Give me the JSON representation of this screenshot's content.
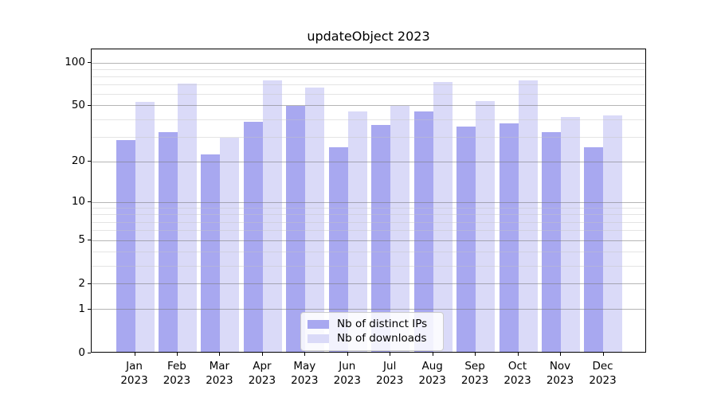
{
  "chart_data": {
    "type": "bar",
    "title": "updateObject 2023",
    "y_scale": "log1p",
    "categories": [
      "Jan",
      "Feb",
      "Mar",
      "Apr",
      "May",
      "Jun",
      "Jul",
      "Aug",
      "Sep",
      "Oct",
      "Nov",
      "Dec"
    ],
    "year_label": "2023",
    "series": [
      {
        "name": "Nb of distinct IPs",
        "color": "#a8a8f0",
        "values": [
          28,
          32,
          22,
          38,
          49,
          25,
          36,
          45,
          35,
          37,
          32,
          25
        ]
      },
      {
        "name": "Nb of downloads",
        "color": "#dadaf8",
        "values": [
          52,
          70,
          29,
          74,
          66,
          45,
          49,
          72,
          53,
          74,
          41,
          42
        ]
      }
    ],
    "yticks": [
      0,
      1,
      2,
      5,
      10,
      20,
      50,
      100
    ],
    "minor_yticks": [
      3,
      4,
      6,
      7,
      8,
      9,
      30,
      40,
      60,
      70,
      80,
      90
    ],
    "ylim": [
      0,
      125
    ],
    "xlabel": "",
    "ylabel": "",
    "grid": "horizontal major+minor, drawn over bars",
    "legend_position": "bottom-center"
  }
}
